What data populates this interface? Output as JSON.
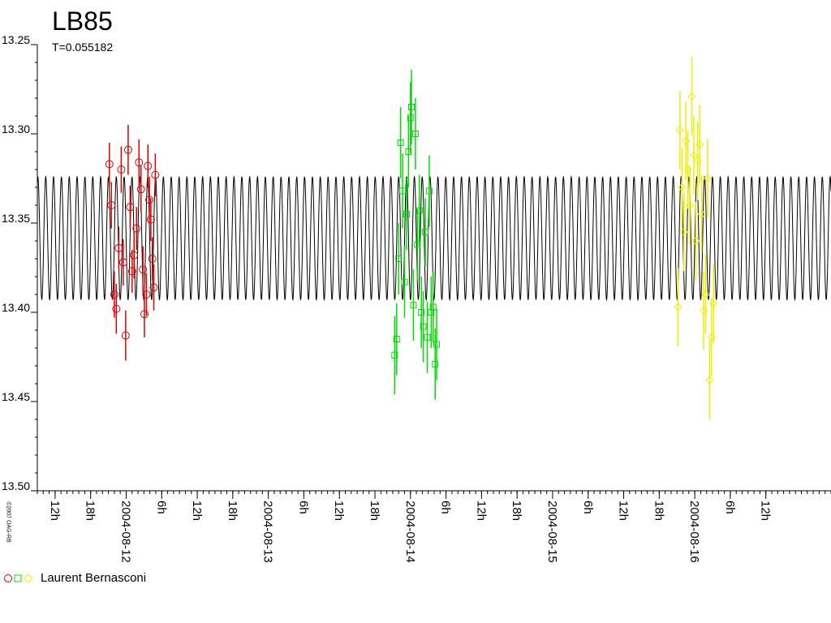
{
  "chart_data": {
    "type": "scatter",
    "title": "LB85",
    "subtitle": "T=0.055182",
    "copyright": "©2007 OAG-RB",
    "ylim": [
      13.5,
      13.25
    ],
    "y_reversed": true,
    "y_ticks": [
      "13.25",
      "13.30",
      "13.35",
      "13.40",
      "13.45",
      "13.50"
    ],
    "xlim": [
      "2004-08-11 09:00",
      "2004-08-16 23:00"
    ],
    "x_ticks": [
      {
        "t": "2004-08-11 12:00",
        "label": "12h"
      },
      {
        "t": "2004-08-11 18:00",
        "label": "18h"
      },
      {
        "t": "2004-08-12 00:00",
        "label": "2004-08-12"
      },
      {
        "t": "2004-08-12 06:00",
        "label": "6h"
      },
      {
        "t": "2004-08-12 12:00",
        "label": "12h"
      },
      {
        "t": "2004-08-12 18:00",
        "label": "18h"
      },
      {
        "t": "2004-08-13 00:00",
        "label": "2004-08-13"
      },
      {
        "t": "2004-08-13 06:00",
        "label": "6h"
      },
      {
        "t": "2004-08-13 12:00",
        "label": "12h"
      },
      {
        "t": "2004-08-13 18:00",
        "label": "18h"
      },
      {
        "t": "2004-08-14 00:00",
        "label": "2004-08-14"
      },
      {
        "t": "2004-08-14 06:00",
        "label": "6h"
      },
      {
        "t": "2004-08-14 12:00",
        "label": "12h"
      },
      {
        "t": "2004-08-14 18:00",
        "label": "18h"
      },
      {
        "t": "2004-08-15 00:00",
        "label": "2004-08-15"
      },
      {
        "t": "2004-08-15 06:00",
        "label": "6h"
      },
      {
        "t": "2004-08-15 12:00",
        "label": "12h"
      },
      {
        "t": "2004-08-15 18:00",
        "label": "18h"
      },
      {
        "t": "2004-08-16 00:00",
        "label": "2004-08-16"
      },
      {
        "t": "2004-08-16 06:00",
        "label": "6h"
      },
      {
        "t": "2004-08-16 12:00",
        "label": "12h"
      }
    ],
    "model_curve": {
      "period_days": 0.055182,
      "min_mag": 13.324,
      "max_mag": 13.393,
      "phase_zero": "2004-08-11 10:25",
      "color": "#000000"
    },
    "series": [
      {
        "name": "Laurent Bernasconi",
        "marker": "circle",
        "color": "#dd0000",
        "points": [
          {
            "t": "2004-08-11 21:10",
            "y": 13.317,
            "err": 0.012
          },
          {
            "t": "2004-08-11 21:30",
            "y": 13.34,
            "err": 0.013
          },
          {
            "t": "2004-08-11 22:00",
            "y": 13.39,
            "err": 0.013
          },
          {
            "t": "2004-08-11 22:20",
            "y": 13.398,
            "err": 0.014
          },
          {
            "t": "2004-08-11 22:45",
            "y": 13.364,
            "err": 0.012
          },
          {
            "t": "2004-08-11 23:10",
            "y": 13.32,
            "err": 0.013
          },
          {
            "t": "2004-08-11 23:30",
            "y": 13.372,
            "err": 0.013
          },
          {
            "t": "2004-08-11 23:55",
            "y": 13.413,
            "err": 0.014
          },
          {
            "t": "2004-08-12 00:20",
            "y": 13.309,
            "err": 0.014
          },
          {
            "t": "2004-08-12 00:40",
            "y": 13.341,
            "err": 0.012
          },
          {
            "t": "2004-08-12 01:00",
            "y": 13.377,
            "err": 0.012
          },
          {
            "t": "2004-08-12 01:20",
            "y": 13.368,
            "err": 0.013
          },
          {
            "t": "2004-08-12 01:45",
            "y": 13.353,
            "err": 0.012
          },
          {
            "t": "2004-08-12 02:10",
            "y": 13.316,
            "err": 0.013
          },
          {
            "t": "2004-08-12 02:30",
            "y": 13.331,
            "err": 0.013
          },
          {
            "t": "2004-08-12 02:50",
            "y": 13.376,
            "err": 0.013
          },
          {
            "t": "2004-08-12 03:05",
            "y": 13.401,
            "err": 0.013
          },
          {
            "t": "2004-08-12 03:25",
            "y": 13.39,
            "err": 0.012
          },
          {
            "t": "2004-08-12 03:40",
            "y": 13.318,
            "err": 0.012
          },
          {
            "t": "2004-08-12 03:55",
            "y": 13.337,
            "err": 0.013
          },
          {
            "t": "2004-08-12 04:10",
            "y": 13.348,
            "err": 0.012
          },
          {
            "t": "2004-08-12 04:25",
            "y": 13.37,
            "err": 0.012
          },
          {
            "t": "2004-08-12 04:40",
            "y": 13.386,
            "err": 0.013
          },
          {
            "t": "2004-08-12 04:55",
            "y": 13.323,
            "err": 0.012
          }
        ]
      },
      {
        "name": "Laurent Bernasconi",
        "marker": "square",
        "color": "#00dd00",
        "points": [
          {
            "t": "2004-08-13 21:20",
            "y": 13.424,
            "err": 0.022
          },
          {
            "t": "2004-08-13 21:40",
            "y": 13.415,
            "err": 0.02
          },
          {
            "t": "2004-08-13 22:00",
            "y": 13.37,
            "err": 0.02
          },
          {
            "t": "2004-08-13 22:20",
            "y": 13.305,
            "err": 0.02
          },
          {
            "t": "2004-08-13 22:40",
            "y": 13.332,
            "err": 0.021
          },
          {
            "t": "2004-08-13 23:00",
            "y": 13.383,
            "err": 0.02
          },
          {
            "t": "2004-08-13 23:20",
            "y": 13.345,
            "err": 0.02
          },
          {
            "t": "2004-08-13 23:40",
            "y": 13.31,
            "err": 0.02
          },
          {
            "t": "2004-08-14 00:00",
            "y": 13.291,
            "err": 0.02
          },
          {
            "t": "2004-08-14 00:10",
            "y": 13.285,
            "err": 0.021
          },
          {
            "t": "2004-08-14 00:30",
            "y": 13.396,
            "err": 0.02
          },
          {
            "t": "2004-08-14 00:50",
            "y": 13.3,
            "err": 0.02
          },
          {
            "t": "2004-08-14 01:10",
            "y": 13.362,
            "err": 0.02
          },
          {
            "t": "2004-08-14 01:30",
            "y": 13.343,
            "err": 0.02
          },
          {
            "t": "2004-08-14 01:50",
            "y": 13.4,
            "err": 0.02
          },
          {
            "t": "2004-08-14 02:10",
            "y": 13.408,
            "err": 0.02
          },
          {
            "t": "2004-08-14 02:30",
            "y": 13.355,
            "err": 0.019
          },
          {
            "t": "2004-08-14 02:50",
            "y": 13.414,
            "err": 0.02
          },
          {
            "t": "2004-08-14 03:10",
            "y": 13.332,
            "err": 0.02
          },
          {
            "t": "2004-08-14 03:30",
            "y": 13.4,
            "err": 0.02
          },
          {
            "t": "2004-08-14 03:50",
            "y": 13.397,
            "err": 0.02
          },
          {
            "t": "2004-08-14 04:10",
            "y": 13.429,
            "err": 0.02
          },
          {
            "t": "2004-08-14 04:25",
            "y": 13.418,
            "err": 0.02
          }
        ]
      },
      {
        "name": "Laurent Bernasconi",
        "marker": "diamond",
        "color": "#eeee00",
        "points": [
          {
            "t": "2004-08-15 21:10",
            "y": 13.397,
            "err": 0.022
          },
          {
            "t": "2004-08-15 21:30",
            "y": 13.298,
            "err": 0.022
          },
          {
            "t": "2004-08-15 21:50",
            "y": 13.33,
            "err": 0.022
          },
          {
            "t": "2004-08-15 22:10",
            "y": 13.355,
            "err": 0.022
          },
          {
            "t": "2004-08-15 22:30",
            "y": 13.304,
            "err": 0.022
          },
          {
            "t": "2004-08-15 22:50",
            "y": 13.32,
            "err": 0.022
          },
          {
            "t": "2004-08-15 23:10",
            "y": 13.34,
            "err": 0.022
          },
          {
            "t": "2004-08-15 23:30",
            "y": 13.279,
            "err": 0.022
          },
          {
            "t": "2004-08-15 23:50",
            "y": 13.312,
            "err": 0.022
          },
          {
            "t": "2004-08-16 00:10",
            "y": 13.36,
            "err": 0.022
          },
          {
            "t": "2004-08-16 00:30",
            "y": 13.315,
            "err": 0.022
          },
          {
            "t": "2004-08-16 00:50",
            "y": 13.306,
            "err": 0.022
          },
          {
            "t": "2004-08-16 01:10",
            "y": 13.345,
            "err": 0.022
          },
          {
            "t": "2004-08-16 01:30",
            "y": 13.399,
            "err": 0.022
          },
          {
            "t": "2004-08-16 01:50",
            "y": 13.39,
            "err": 0.022
          },
          {
            "t": "2004-08-16 02:10",
            "y": 13.325,
            "err": 0.022
          },
          {
            "t": "2004-08-16 02:30",
            "y": 13.438,
            "err": 0.022
          },
          {
            "t": "2004-08-16 02:50",
            "y": 13.414,
            "err": 0.022
          },
          {
            "t": "2004-08-16 03:10",
            "y": 13.395,
            "err": 0.022
          }
        ]
      }
    ],
    "legend": {
      "label": "Laurent Bernasconi",
      "placement": "bottom-left"
    }
  }
}
